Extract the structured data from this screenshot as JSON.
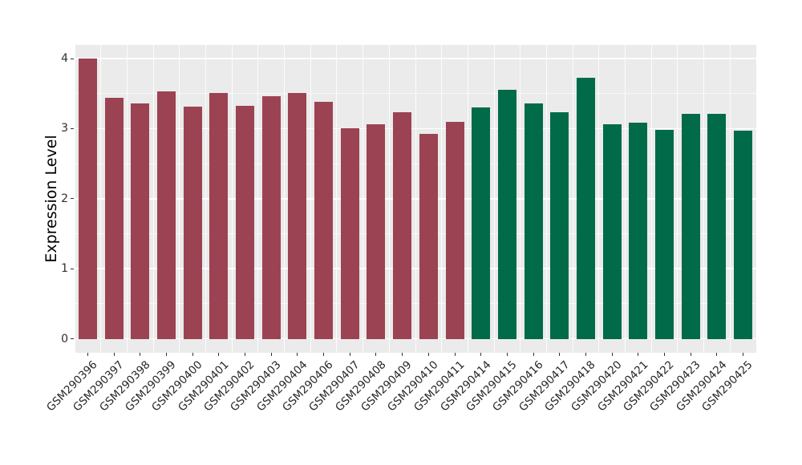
{
  "chart_data": {
    "type": "bar",
    "title": "",
    "xlabel": "",
    "ylabel": "Expression Level",
    "categories": [
      "GSM290396",
      "GSM290397",
      "GSM290398",
      "GSM290399",
      "GSM290400",
      "GSM290401",
      "GSM290402",
      "GSM290403",
      "GSM290404",
      "GSM290406",
      "GSM290407",
      "GSM290408",
      "GSM290409",
      "GSM290410",
      "GSM290411",
      "GSM290414",
      "GSM290415",
      "GSM290416",
      "GSM290417",
      "GSM290418",
      "GSM290420",
      "GSM290421",
      "GSM290422",
      "GSM290423",
      "GSM290424",
      "GSM290425"
    ],
    "values": [
      4.0,
      3.44,
      3.36,
      3.53,
      3.31,
      3.51,
      3.33,
      3.46,
      3.51,
      3.38,
      3.01,
      3.06,
      3.23,
      2.92,
      3.1,
      3.3,
      3.55,
      3.36,
      3.23,
      3.72,
      3.06,
      3.08,
      2.98,
      3.21,
      3.21,
      2.97
    ],
    "bar_groups": [
      1,
      1,
      1,
      1,
      1,
      1,
      1,
      1,
      1,
      1,
      1,
      1,
      1,
      1,
      1,
      2,
      2,
      2,
      2,
      2,
      2,
      2,
      2,
      2,
      2,
      2
    ],
    "group_colors": {
      "1": "#9b4352",
      "2": "#016a49"
    },
    "y_ticks": [
      0,
      1,
      2,
      3,
      4
    ],
    "y_tick_labels": [
      "0",
      "1",
      "2",
      "3",
      "4"
    ],
    "ylim": [
      -0.2,
      4.2
    ],
    "grid": "on",
    "legend": "none",
    "panel_background": "#ebebeb",
    "grid_color": "#ffffff"
  }
}
